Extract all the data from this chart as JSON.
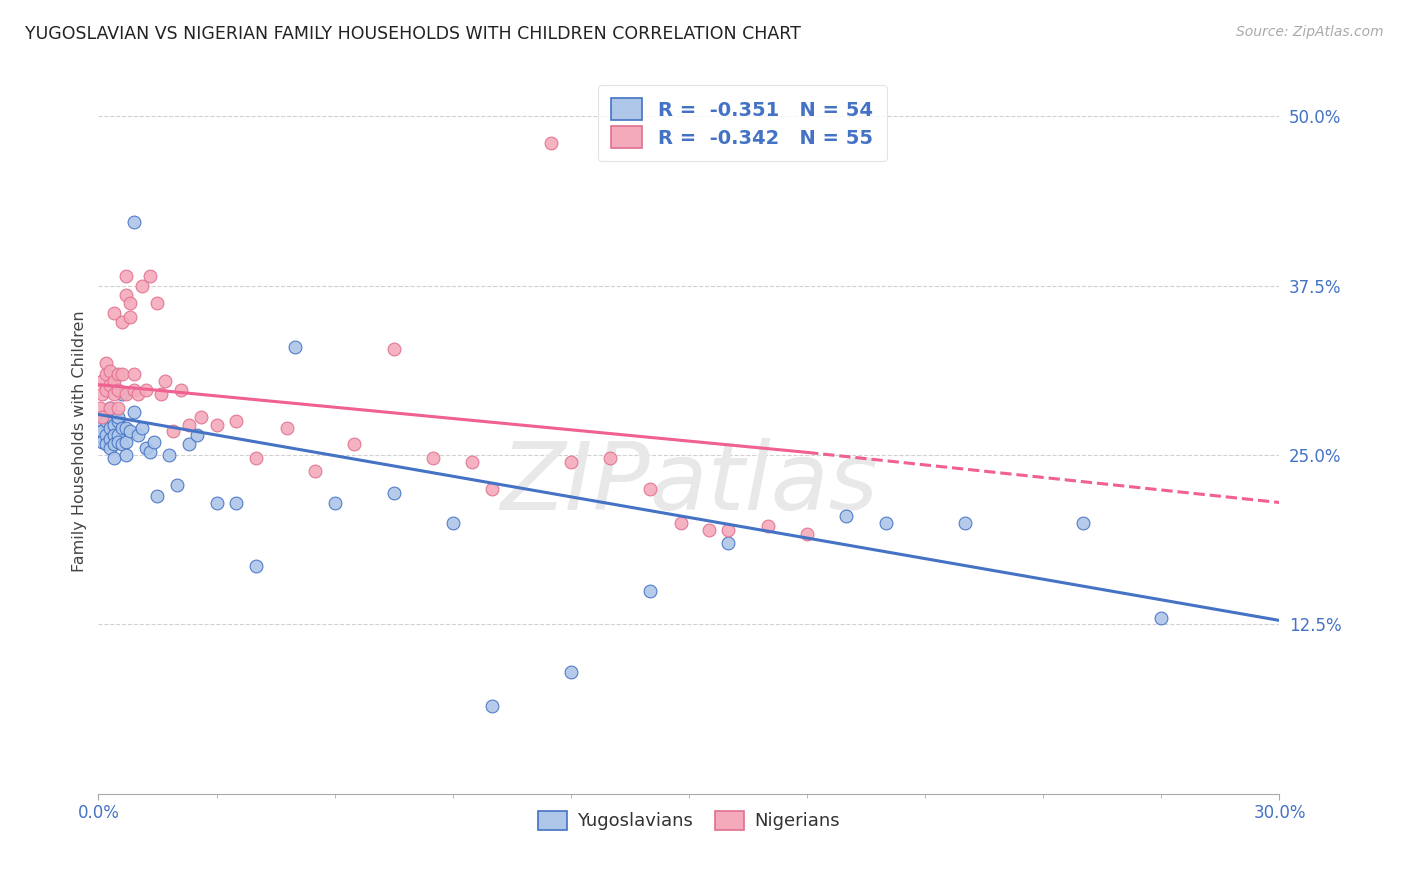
{
  "title": "YUGOSLAVIAN VS NIGERIAN FAMILY HOUSEHOLDS WITH CHILDREN CORRELATION CHART",
  "source": "Source: ZipAtlas.com",
  "ylabel": "Family Households with Children",
  "legend_r_yug": "-0.351",
  "legend_n_yug": "54",
  "legend_r_nig": "-0.342",
  "legend_n_nig": "55",
  "legend_label_yug": "Yugoslavians",
  "legend_label_nig": "Nigerians",
  "color_yug_face": "#aec6e8",
  "color_yug_edge": "#4472c4",
  "color_nig_face": "#f4aabb",
  "color_nig_edge": "#e07090",
  "color_line_yug": "#4472c4",
  "color_line_nig": "#f06090",
  "watermark": "ZIPatlas",
  "background_color": "#ffffff",
  "text_color_axis": "#4472c4",
  "xlim": [
    0.0,
    0.3
  ],
  "ylim": [
    0.0,
    0.52
  ],
  "ytick_vals": [
    0.125,
    0.25,
    0.375,
    0.5
  ],
  "ytick_labels": [
    "12.5%",
    "25.0%",
    "37.5%",
    "50.0%"
  ],
  "yug_scatter_x": [
    0.0005,
    0.001,
    0.001,
    0.001,
    0.002,
    0.002,
    0.002,
    0.003,
    0.003,
    0.003,
    0.003,
    0.004,
    0.004,
    0.004,
    0.004,
    0.005,
    0.005,
    0.005,
    0.005,
    0.006,
    0.006,
    0.006,
    0.007,
    0.007,
    0.007,
    0.008,
    0.009,
    0.009,
    0.01,
    0.011,
    0.012,
    0.013,
    0.014,
    0.015,
    0.018,
    0.02,
    0.023,
    0.025,
    0.03,
    0.035,
    0.04,
    0.05,
    0.06,
    0.075,
    0.09,
    0.1,
    0.12,
    0.14,
    0.16,
    0.19,
    0.2,
    0.22,
    0.25,
    0.27
  ],
  "yug_scatter_y": [
    0.265,
    0.275,
    0.268,
    0.26,
    0.275,
    0.265,
    0.258,
    0.27,
    0.262,
    0.255,
    0.285,
    0.272,
    0.265,
    0.258,
    0.248,
    0.275,
    0.265,
    0.278,
    0.26,
    0.27,
    0.258,
    0.295,
    0.27,
    0.26,
    0.25,
    0.268,
    0.422,
    0.282,
    0.265,
    0.27,
    0.255,
    0.252,
    0.26,
    0.22,
    0.25,
    0.228,
    0.258,
    0.265,
    0.215,
    0.215,
    0.168,
    0.33,
    0.215,
    0.222,
    0.2,
    0.065,
    0.09,
    0.15,
    0.185,
    0.205,
    0.2,
    0.2,
    0.2,
    0.13
  ],
  "nig_scatter_x": [
    0.0005,
    0.001,
    0.001,
    0.001,
    0.002,
    0.002,
    0.002,
    0.003,
    0.003,
    0.003,
    0.004,
    0.004,
    0.004,
    0.005,
    0.005,
    0.005,
    0.006,
    0.006,
    0.007,
    0.007,
    0.007,
    0.008,
    0.008,
    0.009,
    0.009,
    0.01,
    0.011,
    0.012,
    0.013,
    0.015,
    0.016,
    0.017,
    0.019,
    0.021,
    0.023,
    0.026,
    0.03,
    0.035,
    0.04,
    0.048,
    0.055,
    0.065,
    0.075,
    0.085,
    0.095,
    0.1,
    0.115,
    0.12,
    0.13,
    0.14,
    0.148,
    0.155,
    0.16,
    0.17,
    0.18
  ],
  "nig_scatter_y": [
    0.285,
    0.305,
    0.295,
    0.278,
    0.31,
    0.298,
    0.318,
    0.312,
    0.285,
    0.302,
    0.355,
    0.305,
    0.295,
    0.31,
    0.298,
    0.285,
    0.348,
    0.31,
    0.368,
    0.382,
    0.295,
    0.352,
    0.362,
    0.298,
    0.31,
    0.295,
    0.375,
    0.298,
    0.382,
    0.362,
    0.295,
    0.305,
    0.268,
    0.298,
    0.272,
    0.278,
    0.272,
    0.275,
    0.248,
    0.27,
    0.238,
    0.258,
    0.328,
    0.248,
    0.245,
    0.225,
    0.48,
    0.245,
    0.248,
    0.225,
    0.2,
    0.195,
    0.195,
    0.198,
    0.192
  ],
  "yug_trend_x0": 0.0,
  "yug_trend_x1": 0.3,
  "yug_trend_y0": 0.28,
  "yug_trend_y1": 0.128,
  "nig_trend_x0": 0.0,
  "nig_trend_x1": 0.18,
  "nig_trend_x1_dash": 0.3,
  "nig_trend_y0": 0.302,
  "nig_trend_y1": 0.252,
  "nig_trend_y1_dash": 0.215
}
